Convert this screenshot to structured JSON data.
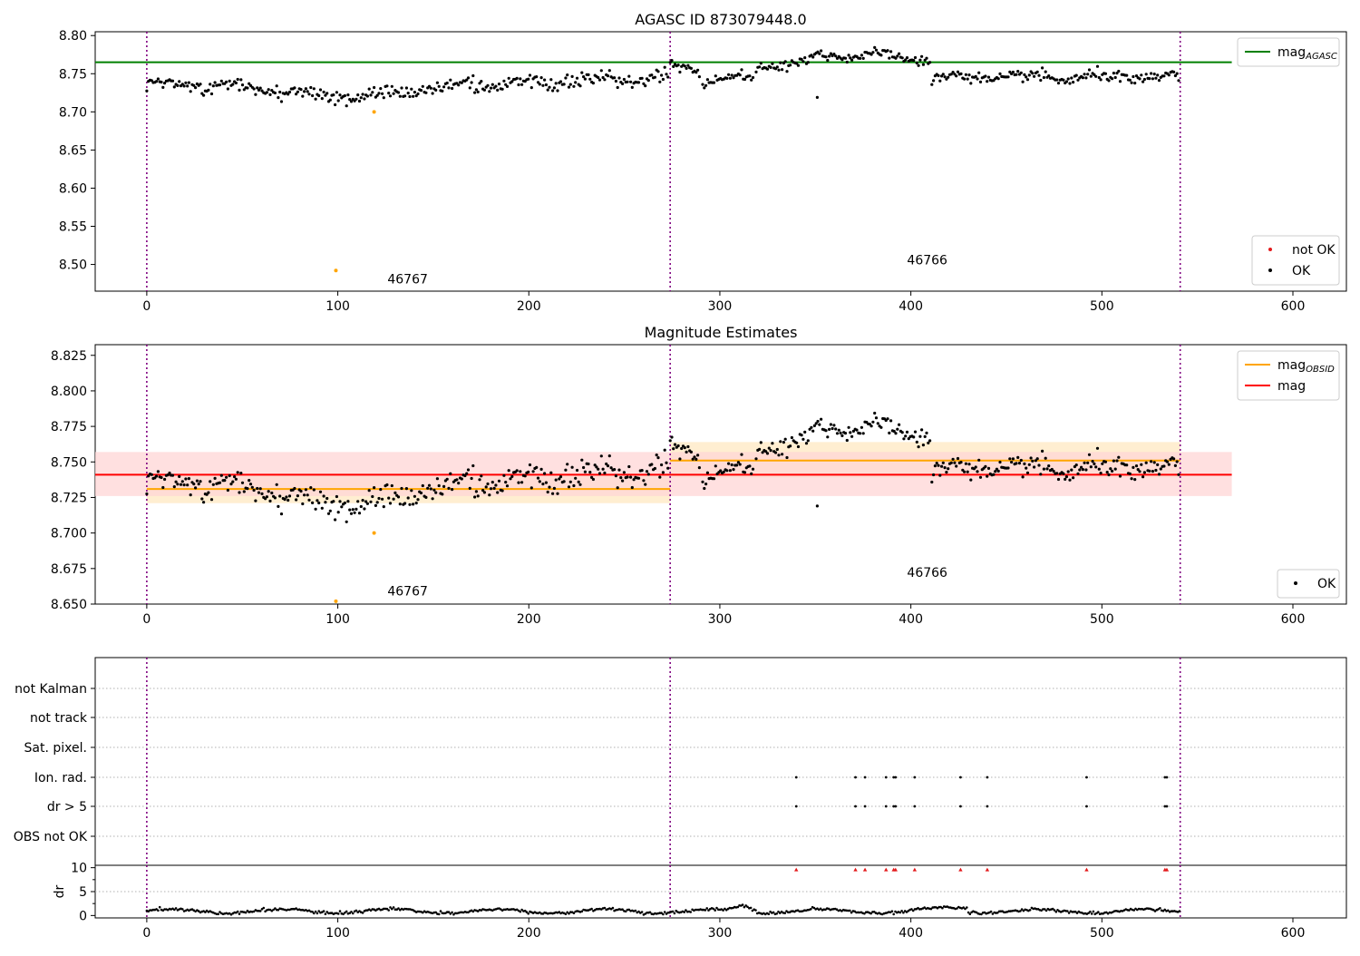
{
  "colors": {
    "ok": "#000000",
    "not_ok": "#e31a1c",
    "agasc_line": "#008000",
    "obsid_line": "#ffa500",
    "mag_line": "#ff0000",
    "obsid_band": "#ffe8c2",
    "mag_band": "#ffd6d6",
    "boundary": "#800080",
    "suspect": "#ffa500"
  },
  "chart_data": [
    {
      "id": "top",
      "type": "scatter",
      "title": "AGASC ID 873079448.0",
      "xlim": [
        -27,
        628
      ],
      "ylim": [
        8.465,
        8.805
      ],
      "xticks": [
        0,
        100,
        200,
        300,
        400,
        500,
        600
      ],
      "yticks": [
        8.5,
        8.55,
        8.6,
        8.65,
        8.7,
        8.75,
        8.8
      ],
      "obsid_boundaries": [
        0,
        274,
        541
      ],
      "obsid_labels": [
        {
          "text": "46767",
          "x": 126,
          "y": 8.475
        },
        {
          "text": "46766",
          "x": 398,
          "y": 8.5
        }
      ],
      "lines": [
        {
          "name": "mag",
          "subscript": "AGASC",
          "y": 8.765,
          "x": [
            -27,
            568
          ]
        }
      ],
      "suspect_points": [
        {
          "x": 99,
          "y": 8.492
        },
        {
          "x": 119,
          "y": 8.7
        }
      ],
      "outlier_points": [
        {
          "x": 351,
          "y": 8.719
        }
      ],
      "segments": [
        {
          "x0": 0,
          "x1": 273,
          "y_start": 8.737,
          "y_end": 8.742,
          "dip_center": 110,
          "dip_depth": 0.017,
          "dip_width": 55,
          "spread": 0.009
        },
        {
          "x0": 274,
          "x1": 290,
          "y_start": 8.76,
          "y_end": 8.752,
          "spread": 0.006
        },
        {
          "x0": 291,
          "x1": 318,
          "y_start": 8.742,
          "y_end": 8.745,
          "spread": 0.006
        },
        {
          "x0": 319,
          "x1": 410,
          "y_start": 8.758,
          "y_end": 8.768,
          "bump_center": 365,
          "bump_height": 0.012,
          "bump_width": 30,
          "spread": 0.006
        },
        {
          "x0": 411,
          "x1": 541,
          "y_start": 8.745,
          "y_end": 8.745,
          "spread": 0.007
        }
      ],
      "legends": [
        {
          "position": "upper-right",
          "entries": [
            {
              "label": "mag",
              "subscript": "AGASC",
              "kind": "line",
              "color": "#008000"
            }
          ]
        },
        {
          "position": "lower-right",
          "entries": [
            {
              "label": "not OK",
              "kind": "dot",
              "color": "#e31a1c"
            },
            {
              "label": "OK",
              "kind": "dot",
              "color": "#000000"
            }
          ]
        }
      ]
    },
    {
      "id": "middle",
      "type": "scatter",
      "title": "Magnitude Estimates",
      "xlim": [
        -27,
        628
      ],
      "ylim": [
        8.65,
        8.8325
      ],
      "xticks": [
        0,
        100,
        200,
        300,
        400,
        500,
        600
      ],
      "yticks": [
        8.65,
        8.675,
        8.7,
        8.725,
        8.75,
        8.775,
        8.8,
        8.825
      ],
      "obsid_boundaries": [
        0,
        274,
        541
      ],
      "obsid_labels": [
        {
          "text": "46767",
          "x": 126,
          "y": 8.656
        },
        {
          "text": "46766",
          "x": 398,
          "y": 8.669
        }
      ],
      "bands": [
        {
          "x": [
            0,
            274
          ],
          "y": [
            8.721,
            8.741
          ],
          "color": "#ffe8c2"
        },
        {
          "x": [
            274,
            541
          ],
          "y": [
            8.739,
            8.764
          ],
          "color": "#ffe8c2"
        },
        {
          "x": [
            -27,
            568
          ],
          "y": [
            8.726,
            8.757
          ],
          "color": "#ffd6d6"
        }
      ],
      "lines": [
        {
          "name": "mag",
          "subscript": "OBSID",
          "y": 8.731,
          "x": [
            0,
            274
          ],
          "color": "#ffa500"
        },
        {
          "name": "mag",
          "subscript": "OBSID",
          "y": 8.751,
          "x": [
            274,
            541
          ],
          "color": "#ffa500"
        },
        {
          "name": "mag",
          "y": 8.741,
          "x": [
            -27,
            568
          ],
          "color": "#ff0000"
        }
      ],
      "suspect_points": [
        {
          "x": 99,
          "y": 8.652
        },
        {
          "x": 119,
          "y": 8.7
        }
      ],
      "outlier_points": [
        {
          "x": 351,
          "y": 8.719
        }
      ],
      "segments": [
        {
          "x0": 0,
          "x1": 273,
          "y_start": 8.737,
          "y_end": 8.742,
          "dip_center": 110,
          "dip_depth": 0.017,
          "dip_width": 55,
          "spread": 0.009
        },
        {
          "x0": 274,
          "x1": 290,
          "y_start": 8.76,
          "y_end": 8.752,
          "spread": 0.006
        },
        {
          "x0": 291,
          "x1": 318,
          "y_start": 8.742,
          "y_end": 8.745,
          "spread": 0.006
        },
        {
          "x0": 319,
          "x1": 410,
          "y_start": 8.758,
          "y_end": 8.768,
          "bump_center": 365,
          "bump_height": 0.012,
          "bump_width": 30,
          "spread": 0.006
        },
        {
          "x0": 411,
          "x1": 541,
          "y_start": 8.745,
          "y_end": 8.745,
          "spread": 0.007
        }
      ],
      "legends": [
        {
          "position": "upper-right",
          "entries": [
            {
              "label": "mag",
              "subscript": "OBSID",
              "kind": "line",
              "color": "#ffa500"
            },
            {
              "label": "mag",
              "kind": "line",
              "color": "#ff0000"
            }
          ]
        },
        {
          "position": "lower-right",
          "entries": [
            {
              "label": "OK",
              "kind": "dot",
              "color": "#000000"
            }
          ]
        }
      ]
    },
    {
      "id": "flags",
      "type": "scatter",
      "xlim": [
        -27,
        628
      ],
      "categories": [
        "not Kalman",
        "not track",
        "Sat. pixel.",
        "Ion. rad.",
        "dr > 5",
        "OBS not OK"
      ],
      "obsid_boundaries": [
        0,
        274,
        541
      ],
      "flag_x": [
        340,
        371,
        376,
        387,
        391,
        392,
        402,
        426,
        440,
        492,
        533,
        534
      ],
      "flagged_rows": [
        "Ion. rad.",
        "dr > 5"
      ]
    },
    {
      "id": "dr",
      "type": "scatter",
      "ylabel": "dr",
      "xlim": [
        -27,
        628
      ],
      "ylim": [
        -0.5,
        10.5
      ],
      "yticks": [
        0,
        5,
        10
      ],
      "xticks": [
        0,
        100,
        200,
        300,
        400,
        500,
        600
      ],
      "obsid_boundaries": [
        0,
        274,
        541
      ],
      "clipped_x": [
        340,
        371,
        376,
        387,
        391,
        392,
        402,
        426,
        440,
        492,
        533,
        534
      ],
      "clip_value": 10
    }
  ]
}
